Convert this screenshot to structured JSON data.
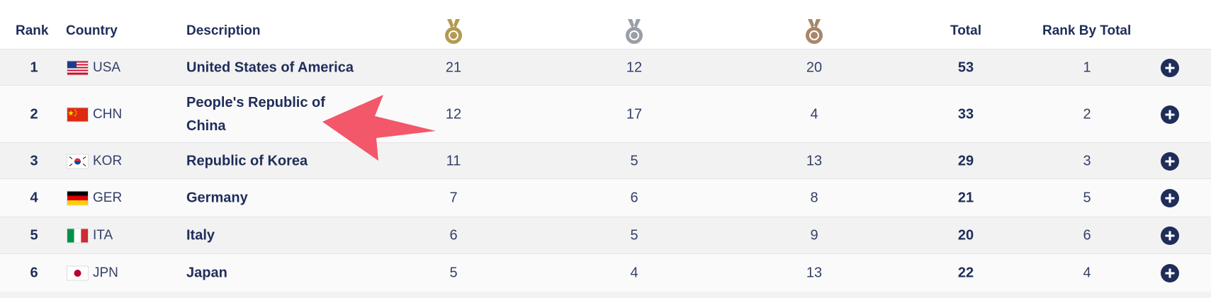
{
  "header": {
    "rank": "Rank",
    "country": "Country",
    "description": "Description",
    "total": "Total",
    "rank_by_total": "Rank By Total",
    "medal_icons": [
      "gold-medal-icon",
      "silver-medal-icon",
      "bronze-medal-icon"
    ]
  },
  "colors": {
    "text": "#1f2d5a",
    "gold": "#b39a52",
    "silver": "#9a9ea6",
    "bronze": "#a7876a",
    "arrow": "#f2576a"
  },
  "rows": [
    {
      "rank": "1",
      "flag": "us-flag-icon",
      "code": "USA",
      "description": "United States of America",
      "gold": "21",
      "silver": "12",
      "bronze": "20",
      "total": "53",
      "rank_by_total": "1"
    },
    {
      "rank": "2",
      "flag": "cn-flag-icon",
      "code": "CHN",
      "description": "People's Republic of China",
      "gold": "12",
      "silver": "17",
      "bronze": "4",
      "total": "33",
      "rank_by_total": "2"
    },
    {
      "rank": "3",
      "flag": "kr-flag-icon",
      "code": "KOR",
      "description": "Republic of Korea",
      "gold": "11",
      "silver": "5",
      "bronze": "13",
      "total": "29",
      "rank_by_total": "3"
    },
    {
      "rank": "4",
      "flag": "de-flag-icon",
      "code": "GER",
      "description": "Germany",
      "gold": "7",
      "silver": "6",
      "bronze": "8",
      "total": "21",
      "rank_by_total": "5"
    },
    {
      "rank": "5",
      "flag": "it-flag-icon",
      "code": "ITA",
      "description": "Italy",
      "gold": "6",
      "silver": "5",
      "bronze": "9",
      "total": "20",
      "rank_by_total": "6"
    },
    {
      "rank": "6",
      "flag": "jp-flag-icon",
      "code": "JPN",
      "description": "Japan",
      "gold": "5",
      "silver": "4",
      "bronze": "13",
      "total": "22",
      "rank_by_total": "4"
    }
  ]
}
